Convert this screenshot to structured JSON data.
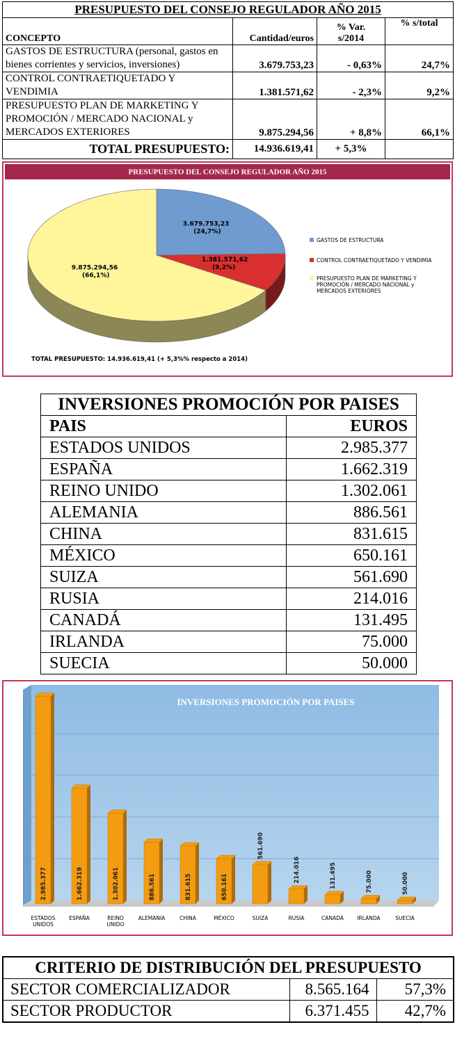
{
  "budget_table": {
    "title": "PRESUPUESTO DEL CONSEJO REGULADOR AÑO 2015",
    "headers": [
      "CONCEPTO",
      "Cantidad/euros",
      "% Var. s/2014",
      "% s/total"
    ],
    "rows": [
      [
        "GASTOS DE ESTRUCTURA (personal, gastos en bienes corrientes y servicios, inversiones)",
        "3.679.753,23",
        "- 0,63%",
        "24,7%"
      ],
      [
        "CONTROL CONTRAETIQUETADO Y VENDIMIA",
        "1.381.571,62",
        "- 2,3%",
        "9,2%"
      ],
      [
        "PRESUPUESTO PLAN DE MARKETING Y PROMOCIÓN / MERCADO NACIONAL y MERCADOS EXTERIORES",
        "9.875.294,56",
        "+ 8,8%",
        "66,1%"
      ]
    ],
    "total": [
      "TOTAL PRESUPUESTO:",
      "14.936.619,41",
      "+ 5,3%"
    ]
  },
  "chart_data": [
    {
      "type": "pie",
      "title": "PRESUPUESTO DEL CONSEJO REGULADOR AÑO 2015",
      "categories": [
        "GASTOS DE ESTRUCTURA",
        "CONTROL CONTRAETIQUETADO Y VENDIMIA",
        "PRESUPUESTO PLAN DE MARKETING Y PROMOCIÓN / MERCADO NACIONAL y MERCADOS EXTERIORES"
      ],
      "values": [
        3679753.23,
        1381571.62,
        9875294.56
      ],
      "value_labels": [
        "3.679.753,23",
        "1.381.571,62",
        "9.875.294,56"
      ],
      "percents": [
        24.7,
        9.2,
        66.1
      ],
      "percent_labels": [
        "(24,7%)",
        "(9,2%)",
        "(66,1%)"
      ],
      "colors": [
        "#6f9bd1",
        "#d9302f",
        "#fff59b"
      ],
      "note": "TOTAL PRESUPUESTO: 14.936.619,41 (+ 5,3%% respecto a 2014)"
    },
    {
      "type": "bar",
      "title": "INVERSIONES PROMOCIÓN POR PAISES",
      "categories": [
        "ESTADOS UNIDOS",
        "ESPAÑA",
        "REINO UNIDO",
        "ALEMANIA",
        "CHINA",
        "MÉXICO",
        "SUIZA",
        "RUSIA",
        "CANADÁ",
        "IRLANDA",
        "SUECIA"
      ],
      "values": [
        2985377,
        1662319,
        1302061,
        886561,
        831615,
        650161,
        561690,
        214016,
        131495,
        75000,
        50000
      ],
      "value_labels": [
        "2.985.377",
        "1.662.319",
        "1.302.061",
        "886.561",
        "831.615",
        "650.161",
        "561.690",
        "214.016",
        "131.495",
        "75.000",
        "50.000"
      ],
      "color": "#f39c12",
      "ylim": [
        0,
        3000000
      ]
    }
  ],
  "country_table": {
    "title": "INVERSIONES PROMOCIÓN POR PAISES",
    "headers": [
      "PAIS",
      "EUROS"
    ],
    "rows": [
      [
        "ESTADOS UNIDOS",
        "2.985.377"
      ],
      [
        "ESPAÑA",
        "1.662.319"
      ],
      [
        "REINO UNIDO",
        "1.302.061"
      ],
      [
        "ALEMANIA",
        "886.561"
      ],
      [
        "CHINA",
        "831.615"
      ],
      [
        "MÉXICO",
        "650.161"
      ],
      [
        "SUIZA",
        "561.690"
      ],
      [
        "RUSIA",
        "214.016"
      ],
      [
        "CANADÁ",
        "131.495"
      ],
      [
        "IRLANDA",
        "75.000"
      ],
      [
        "SUECIA",
        "50.000"
      ]
    ]
  },
  "distribution_table": {
    "title": "CRITERIO DE DISTRIBUCIÓN DEL PRESUPUESTO",
    "rows": [
      [
        "SECTOR COMERCIALIZADOR",
        "8.565.164",
        "57,3%"
      ],
      [
        "SECTOR PRODUCTOR",
        "6.371.455",
        "42,7%"
      ]
    ]
  }
}
